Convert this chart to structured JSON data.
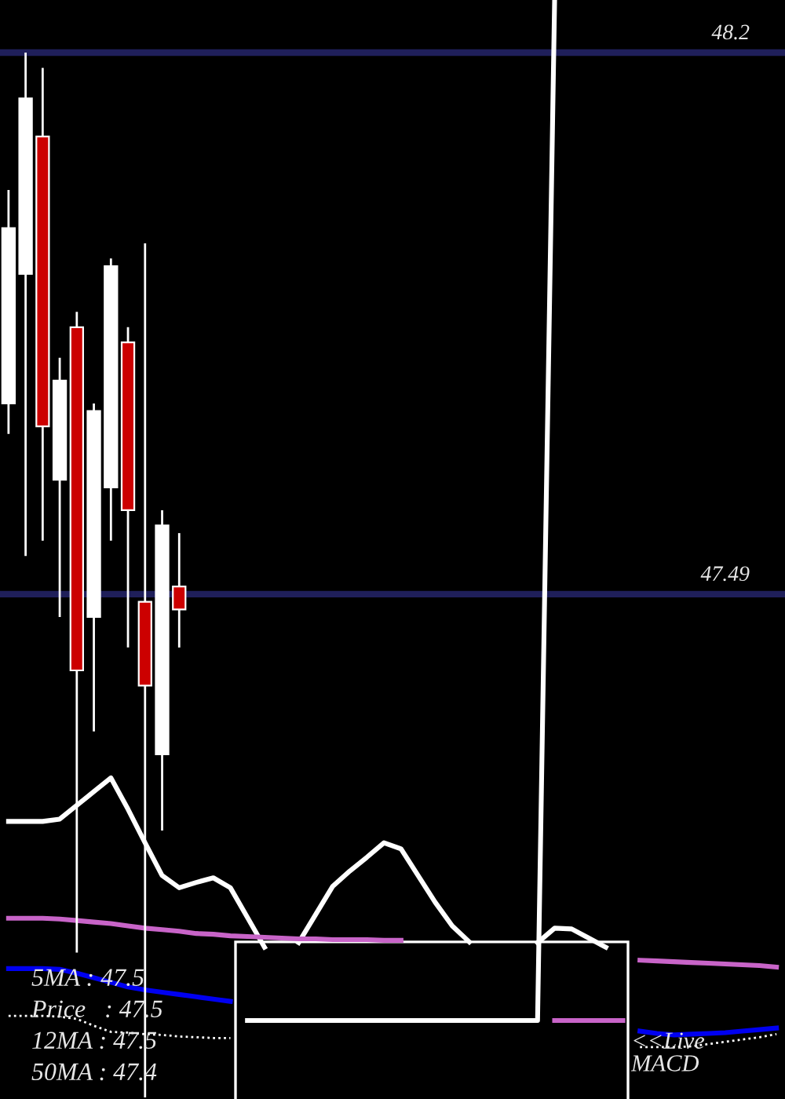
{
  "chart_data": {
    "type": "candlestick",
    "categories": [
      null,
      null,
      null,
      null,
      null,
      null,
      null,
      null,
      null,
      null,
      null,
      null,
      null,
      null,
      null,
      null,
      null,
      null,
      null,
      null,
      null,
      null,
      null,
      null,
      null,
      null,
      null,
      null,
      null,
      null,
      null,
      null,
      null,
      null,
      null,
      null,
      null,
      null,
      null,
      null,
      null,
      null,
      null,
      null,
      null,
      null
    ],
    "ohlc": [
      [
        47.74,
        48.02,
        47.7,
        47.97
      ],
      [
        47.91,
        48.2,
        47.54,
        48.14
      ],
      [
        48.09,
        48.18,
        47.56,
        47.71
      ],
      [
        47.64,
        47.8,
        47.46,
        47.77
      ],
      [
        47.84,
        47.86,
        47.02,
        47.39
      ],
      [
        47.46,
        47.74,
        47.31,
        47.73
      ],
      [
        47.63,
        47.93,
        47.56,
        47.92
      ],
      [
        47.82,
        47.84,
        47.42,
        47.6
      ],
      [
        47.48,
        47.95,
        46.83,
        47.37
      ],
      [
        47.28,
        47.6,
        47.18,
        47.58
      ],
      [
        47.5,
        47.57,
        47.42,
        47.47
      ],
      null,
      null,
      null,
      null,
      null,
      null,
      null,
      null,
      null,
      null,
      null,
      null,
      null,
      null,
      null,
      null,
      null,
      null,
      null,
      null,
      null,
      null,
      null,
      null,
      null,
      null,
      null,
      null,
      null,
      null,
      null,
      null,
      null,
      null,
      null
    ],
    "colors": [
      "#ffffff",
      "#ffffff",
      "#cc0000",
      "#ffffff",
      "#cc0000",
      "#ffffff",
      "#ffffff",
      "#cc0000",
      "#cc0000",
      "#ffffff",
      "#cc0000",
      null,
      null,
      null,
      null,
      null,
      null,
      null,
      null,
      null,
      null,
      null,
      null,
      null,
      null,
      null,
      null,
      null,
      null,
      null,
      null,
      null,
      null,
      null,
      null,
      null,
      null,
      null,
      null,
      null,
      null,
      null,
      null,
      null,
      null,
      null
    ],
    "series": [
      {
        "type": "line",
        "color": "#ffffff",
        "values": [
          47.192,
          47.192,
          47.192,
          47.195,
          47.213,
          47.231,
          47.249,
          47.208,
          47.164,
          47.121,
          47.105,
          47.112,
          47.118,
          47.105,
          47.066,
          47.027,
          null,
          47.033,
          47.07,
          47.107,
          47.127,
          47.145,
          47.164,
          47.156,
          47.121,
          47.086,
          47.055,
          47.034,
          null,
          null,
          null,
          47.033,
          47.052,
          47.051,
          47.039,
          47.027,
          null,
          null,
          null,
          null,
          null,
          null,
          null,
          null,
          null,
          null
        ]
      },
      {
        "type": "line",
        "color": "#c864c8",
        "values": [
          47.065,
          47.065,
          47.065,
          47.064,
          47.062,
          47.06,
          47.058,
          47.055,
          47.052,
          47.05,
          47.048,
          47.045,
          47.044,
          47.042,
          47.041,
          47.04,
          47.039,
          47.038,
          47.038,
          47.037,
          47.037,
          47.037,
          47.036,
          47.036,
          null,
          null,
          null,
          null,
          null,
          null,
          null,
          null,
          null,
          null,
          null,
          null,
          null,
          47.01,
          47.009,
          47.008,
          47.007,
          47.006,
          47.005,
          47.004,
          47.003,
          47.001
        ]
      },
      {
        "type": "line",
        "color": "#0000f0",
        "values": [
          46.999,
          46.999,
          46.999,
          46.998,
          46.993,
          46.987,
          46.981,
          46.975,
          46.971,
          46.968,
          46.965,
          46.962,
          46.959,
          46.956,
          null,
          null,
          null,
          null,
          null,
          null,
          null,
          null,
          null,
          null,
          null,
          null,
          null,
          null,
          null,
          null,
          null,
          null,
          null,
          null,
          null,
          null,
          null,
          46.917,
          46.914,
          46.912,
          46.913,
          46.914,
          46.915,
          46.917,
          46.919,
          46.921
        ]
      },
      {
        "type": "line",
        "color": "#ffffff",
        "line_style": "dotted",
        "values": [
          46.937,
          46.937,
          46.937,
          46.936,
          46.933,
          46.924,
          46.916,
          46.915,
          46.913,
          46.912,
          46.91,
          46.909,
          46.908,
          46.908,
          null,
          null,
          null,
          null,
          null,
          null,
          null,
          null,
          null,
          null,
          null,
          null,
          null,
          null,
          null,
          null,
          null,
          null,
          null,
          null,
          null,
          null,
          null,
          46.896,
          46.896,
          46.896,
          46.897,
          46.9,
          46.903,
          46.906,
          46.909,
          46.913
        ]
      },
      {
        "type": "line",
        "color": "#ffffff",
        "values": [
          null,
          null,
          null,
          null,
          null,
          null,
          null,
          null,
          null,
          null,
          null,
          null,
          null,
          null,
          46.931,
          46.931,
          46.931,
          46.931,
          46.931,
          46.931,
          46.931,
          46.931,
          46.931,
          46.931,
          46.931,
          46.931,
          46.931,
          46.931,
          46.931,
          46.931,
          46.931,
          46.931,
          48.269,
          null,
          null,
          null,
          null,
          null,
          null,
          null,
          null,
          null,
          null,
          null,
          null,
          null
        ]
      },
      {
        "type": "line",
        "color": "#c864c8",
        "values": [
          null,
          null,
          null,
          null,
          null,
          null,
          null,
          null,
          null,
          null,
          null,
          null,
          null,
          null,
          null,
          null,
          null,
          null,
          null,
          null,
          null,
          null,
          null,
          null,
          null,
          null,
          null,
          null,
          null,
          null,
          null,
          null,
          46.931,
          46.931,
          46.931,
          46.931,
          46.931,
          null,
          null,
          null,
          null,
          null,
          null,
          null,
          null,
          null
        ]
      }
    ],
    "ref_lines": [
      {
        "axis": "y",
        "value": 48.2,
        "label": "48.2",
        "color": "#1f1f5a"
      },
      {
        "axis": "y",
        "value": 47.49,
        "label": "47.49",
        "color": "#1f1f5a"
      }
    ],
    "ylim": [
      46.828,
      48.269
    ],
    "tick_labels": false,
    "annotations": [
      "5MA : 47.5",
      "Price   : 47.5",
      "12MA : 47.5",
      "50MA : 47.4",
      {
        "text": "<<Live\nMACD",
        "y": 46.896
      }
    ]
  }
}
